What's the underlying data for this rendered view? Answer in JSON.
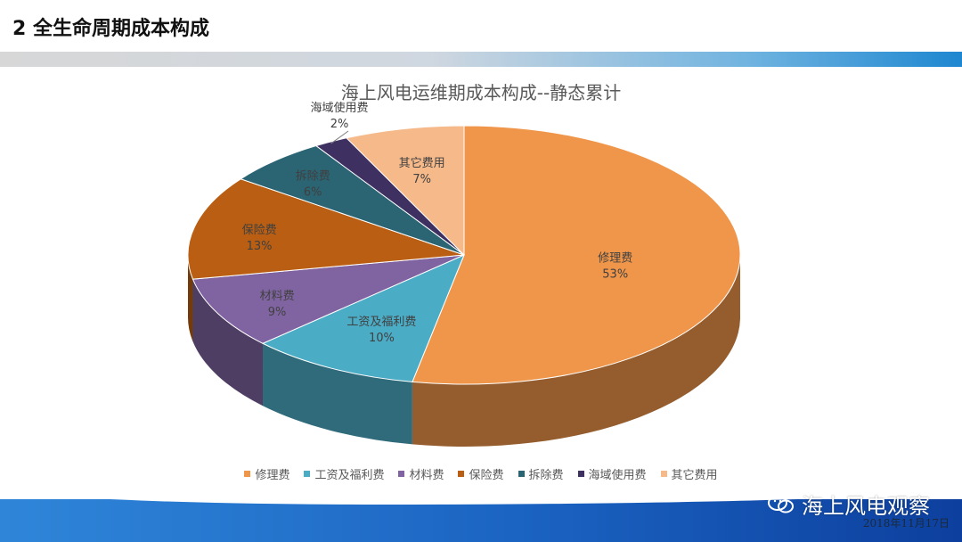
{
  "slide": {
    "title": "2  全生命周期成本构成"
  },
  "watermark": {
    "text": "海上风电观察",
    "date": "2018年11月17日"
  },
  "chart_data": {
    "type": "pie",
    "title": "海上风电运维期成本构成--静态累计",
    "three_d": true,
    "legend_position": "bottom",
    "slices": [
      {
        "name": "修理费",
        "value": 53,
        "label": "53%",
        "color": "#F0964A"
      },
      {
        "name": "工资及福利费",
        "value": 10,
        "label": "10%",
        "color": "#4BACC6"
      },
      {
        "name": "材料费",
        "value": 9,
        "label": "9%",
        "color": "#8064A2"
      },
      {
        "name": "保险费",
        "value": 13,
        "label": "13%",
        "color": "#B95E12"
      },
      {
        "name": "拆除费",
        "value": 6,
        "label": "6%",
        "color": "#2B6473"
      },
      {
        "name": "海域使用费",
        "value": 2,
        "label": "2%",
        "color": "#3E3162"
      },
      {
        "name": "其它费用",
        "value": 7,
        "label": "7%",
        "color": "#F5B98A"
      }
    ]
  }
}
